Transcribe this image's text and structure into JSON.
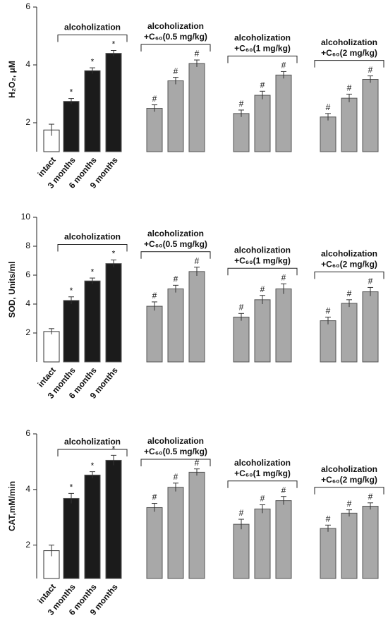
{
  "chart_data": [
    {
      "type": "bar",
      "ylabel": "H₂O₂, μM",
      "ylim": [
        1,
        6
      ],
      "yticks": [
        2,
        4,
        6
      ],
      "control": {
        "category": "intact",
        "value": 1.75,
        "error": 0.2,
        "color": "#ffffff"
      },
      "groups": [
        {
          "label": [
            "alcoholization"
          ],
          "categories": [
            "3 months",
            "6 months",
            "9 months"
          ],
          "values": [
            2.74,
            3.8,
            4.4
          ],
          "errors": [
            0.1,
            0.1,
            0.1
          ],
          "marker": "*",
          "color": "#1b1b1b"
        },
        {
          "label": [
            "alcoholization",
            "+C₆₀(0.5 mg/kg)"
          ],
          "values": [
            2.5,
            3.45,
            4.05
          ],
          "errors": [
            0.12,
            0.12,
            0.12
          ],
          "marker": "#",
          "color": "#a8a8a8"
        },
        {
          "label": [
            "alcoholization",
            "+C₆₀(1 mg/kg)"
          ],
          "values": [
            2.32,
            2.95,
            3.65
          ],
          "errors": [
            0.12,
            0.14,
            0.12
          ],
          "marker": "#",
          "color": "#a8a8a8"
        },
        {
          "label": [
            "alcoholization",
            "+C₆₀(2 mg/kg)"
          ],
          "values": [
            2.2,
            2.85,
            3.5
          ],
          "errors": [
            0.12,
            0.14,
            0.12
          ],
          "marker": "#",
          "color": "#a8a8a8"
        }
      ]
    },
    {
      "type": "bar",
      "ylabel": "SOD, Units/ml",
      "ylim": [
        0,
        10
      ],
      "yticks": [
        2,
        4,
        6,
        8,
        10
      ],
      "control": {
        "category": "intact",
        "value": 2.1,
        "error": 0.2,
        "color": "#ffffff"
      },
      "groups": [
        {
          "label": [
            "alcoholization"
          ],
          "categories": [
            "3 months",
            "6 months",
            "9 months"
          ],
          "values": [
            4.25,
            5.6,
            6.8
          ],
          "errors": [
            0.25,
            0.2,
            0.25
          ],
          "marker": "*",
          "color": "#1b1b1b"
        },
        {
          "label": [
            "alcoholization",
            "+C₆₀(0.5 mg/kg)"
          ],
          "values": [
            3.85,
            5.05,
            6.25
          ],
          "errors": [
            0.3,
            0.25,
            0.3
          ],
          "marker": "#",
          "color": "#a8a8a8"
        },
        {
          "label": [
            "alcoholization",
            "+C₆₀(1 mg/kg)"
          ],
          "values": [
            3.1,
            4.3,
            5.05
          ],
          "errors": [
            0.25,
            0.3,
            0.35
          ],
          "marker": "#",
          "color": "#a8a8a8"
        },
        {
          "label": [
            "alcoholization",
            "+C₆₀(2 mg/kg)"
          ],
          "values": [
            2.85,
            4.05,
            4.85
          ],
          "errors": [
            0.25,
            0.25,
            0.3
          ],
          "marker": "#",
          "color": "#a8a8a8"
        }
      ]
    },
    {
      "type": "bar",
      "ylabel": "CAT,mM/min",
      "ylim": [
        0.8,
        6
      ],
      "yticks": [
        2,
        4,
        6
      ],
      "control": {
        "category": "intact",
        "value": 1.8,
        "error": 0.2,
        "color": "#ffffff"
      },
      "groups": [
        {
          "label": [
            "alcoholization"
          ],
          "categories": [
            "3 months",
            "6 months",
            "9 months"
          ],
          "values": [
            3.68,
            4.52,
            5.05
          ],
          "errors": [
            0.18,
            0.12,
            0.18
          ],
          "marker": "*",
          "color": "#1b1b1b"
        },
        {
          "label": [
            "alcoholization",
            "+C₆₀(0.5 mg/kg)"
          ],
          "values": [
            3.35,
            4.08,
            4.62
          ],
          "errors": [
            0.15,
            0.15,
            0.12
          ],
          "marker": "#",
          "color": "#a8a8a8"
        },
        {
          "label": [
            "alcoholization",
            "+C₆₀(1 mg/kg)"
          ],
          "values": [
            2.75,
            3.3,
            3.6
          ],
          "errors": [
            0.18,
            0.15,
            0.15
          ],
          "marker": "#",
          "color": "#a8a8a8"
        },
        {
          "label": [
            "alcoholization",
            "+C₆₀(2 mg/kg)"
          ],
          "values": [
            2.6,
            3.15,
            3.4
          ],
          "errors": [
            0.12,
            0.12,
            0.12
          ],
          "marker": "#",
          "color": "#a8a8a8"
        }
      ]
    }
  ]
}
